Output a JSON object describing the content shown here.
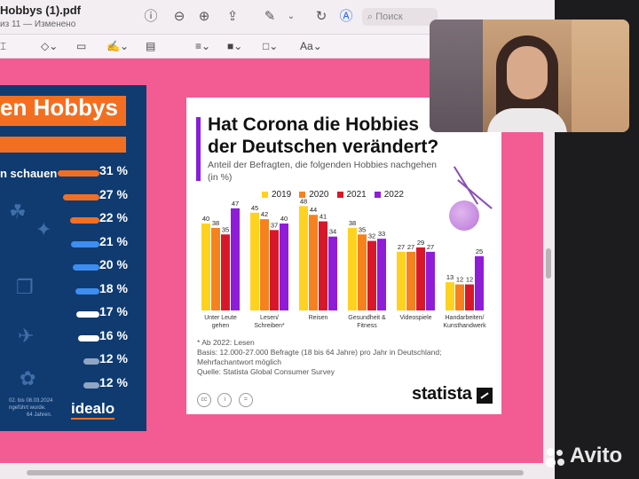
{
  "window": {
    "title": "Hobbys (1).pdf",
    "subtitle": "из 11 — Изменено",
    "search_placeholder": "Поиск",
    "text_tool": "Aa"
  },
  "left_infographic": {
    "title": "en Hobbys",
    "first_label": "n schauen",
    "percents": [
      "31 %",
      "27 %",
      "22 %",
      "21 %",
      "20 %",
      "18 %",
      "17 %",
      "16 %",
      "12 %",
      "12 %"
    ],
    "bar_colors": [
      "#f26f21",
      "#f26f21",
      "#f26f21",
      "#3d8ef0",
      "#3d8ef0",
      "#3d8ef0",
      "#ffffff",
      "#ffffff",
      "#8fa6c4",
      "#8fa6c4"
    ],
    "bar_fill_fractions": [
      0.31,
      0.27,
      0.22,
      0.21,
      0.2,
      0.18,
      0.17,
      0.16,
      0.12,
      0.12
    ],
    "footnote_lines": [
      "02. bis 08.03.2024",
      "ngeführt wurde.",
      "64 Jahren."
    ],
    "logo": "idealo"
  },
  "statista_card": {
    "title_line1": "Hat Corona die Hobbies",
    "title_line2": "der Deutschen verändert?",
    "subtitle": "Anteil der Befragten, die folgenden Hobbies nachgehen (in %)",
    "note1": "* Ab 2022: Lesen",
    "note2": "Basis: 12.000-27.000 Befragte (18 bis 64 Jahre) pro Jahr in Deutschland; Mehrfachantwort möglich",
    "note3": "Quelle: Statista Global Consumer Survey",
    "logo": "statista",
    "icons": [
      "cc",
      "i",
      "="
    ]
  },
  "chart_data": {
    "type": "bar",
    "categories": [
      "Unter Leute gehen",
      "Lesen/ Schreiben*",
      "Reisen",
      "Gesundheit & Fitness",
      "Videospiele",
      "Handarbeiten/ Kunsthandwerk"
    ],
    "series": [
      {
        "name": "2019",
        "color": "#ffd21f",
        "values": [
          40,
          45,
          48,
          38,
          27,
          13
        ]
      },
      {
        "name": "2020",
        "color": "#f5821f",
        "values": [
          38,
          42,
          44,
          35,
          27,
          12
        ]
      },
      {
        "name": "2021",
        "color": "#d7182a",
        "values": [
          35,
          37,
          41,
          32,
          29,
          12
        ]
      },
      {
        "name": "2022",
        "color": "#8f1dd8",
        "values": [
          47,
          40,
          34,
          33,
          27,
          25
        ]
      }
    ],
    "ylim": [
      0,
      50
    ],
    "grid": false,
    "legend_position": "top"
  },
  "watermark": "Avito"
}
